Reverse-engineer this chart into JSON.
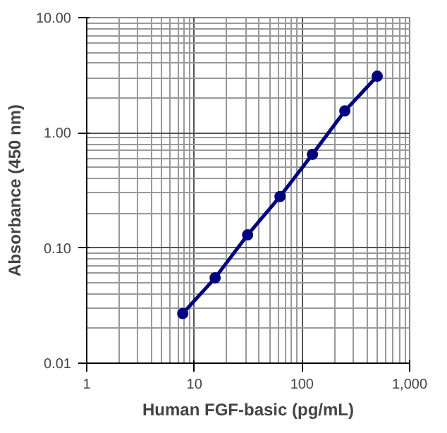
{
  "chart_data": {
    "type": "line",
    "xlabel": "Human FGF-basic (pg/mL)",
    "ylabel": "Absorbance (450 nm)",
    "x": [
      7.8,
      15.6,
      31.25,
      62.5,
      125,
      250,
      500
    ],
    "series": [
      {
        "color": "#000080",
        "values": [
          0.027,
          0.055,
          0.13,
          0.28,
          0.65,
          1.55,
          3.1
        ]
      }
    ],
    "log": "xy",
    "xlim": [
      1,
      1000
    ],
    "ylim": [
      0.01,
      10
    ],
    "xticks": [
      1,
      10,
      100,
      {
        "value": 1000,
        "label": "1,000"
      }
    ],
    "yticks": [
      {
        "value": 0.01,
        "label": "0.01"
      },
      {
        "value": 0.1,
        "label": "0.10"
      },
      {
        "value": 1,
        "label": "1.00"
      },
      {
        "value": 10,
        "label": "10.00"
      }
    ],
    "grid": true,
    "marker": "circle",
    "line_style": "solid"
  }
}
